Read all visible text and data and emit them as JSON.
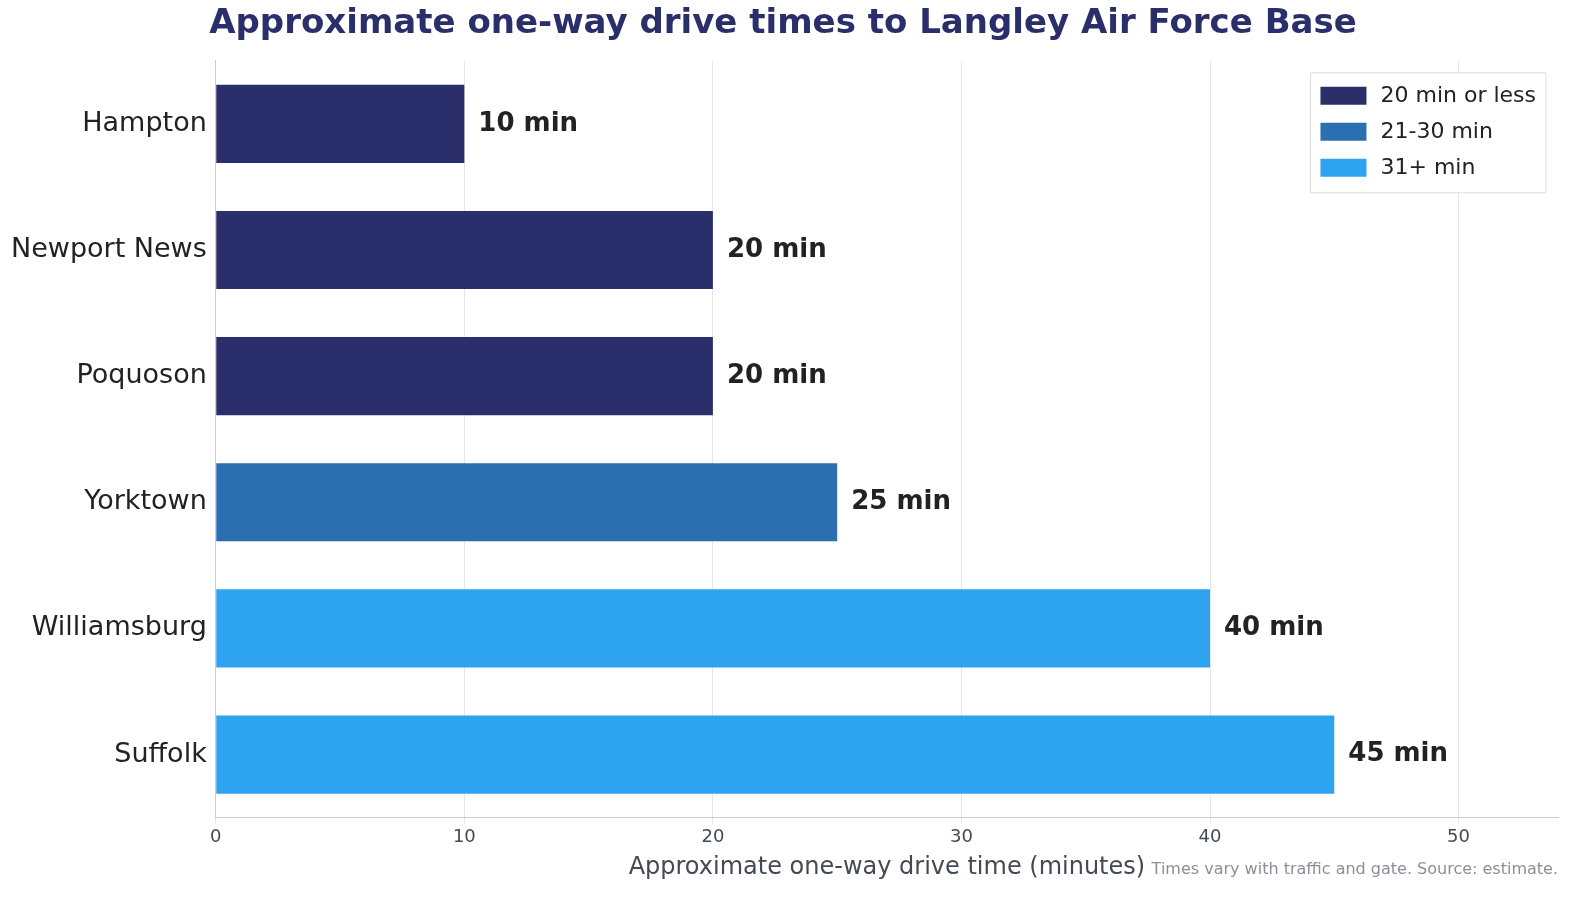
{
  "chart_data": {
    "type": "bar",
    "orientation": "horizontal",
    "title": "Approximate one-way drive times to Langley Air Force Base",
    "xlabel": "Approximate one-way drive time (minutes)",
    "categories": [
      "Hampton",
      "Newport News",
      "Poquoson",
      "Yorktown",
      "Williamsburg",
      "Suffolk"
    ],
    "series": [
      {
        "name": "20 min or less",
        "color": "#2a2f6b",
        "values": [
          10,
          20,
          20,
          null,
          null,
          null
        ],
        "value_labels": [
          "10 min",
          "20 min",
          "20 min",
          null,
          null,
          null
        ]
      },
      {
        "name": "21-30 min",
        "color": "#2b6fb0",
        "values": [
          null,
          null,
          null,
          25,
          null,
          null
        ],
        "value_labels": [
          null,
          null,
          null,
          "25 min",
          null,
          null
        ]
      },
      {
        "name": "31+ min",
        "color": "#2ea3ef",
        "values": [
          null,
          null,
          null,
          null,
          40,
          45
        ],
        "value_labels": [
          null,
          null,
          null,
          null,
          "40 min",
          "45 min"
        ]
      }
    ],
    "xlim": [
      0,
      54
    ],
    "xticks": [
      0,
      10,
      20,
      30,
      40,
      50
    ],
    "grid": "x",
    "legend": "top right",
    "annotations": [
      "Times vary with traffic and gate. Source: estimate."
    ]
  }
}
